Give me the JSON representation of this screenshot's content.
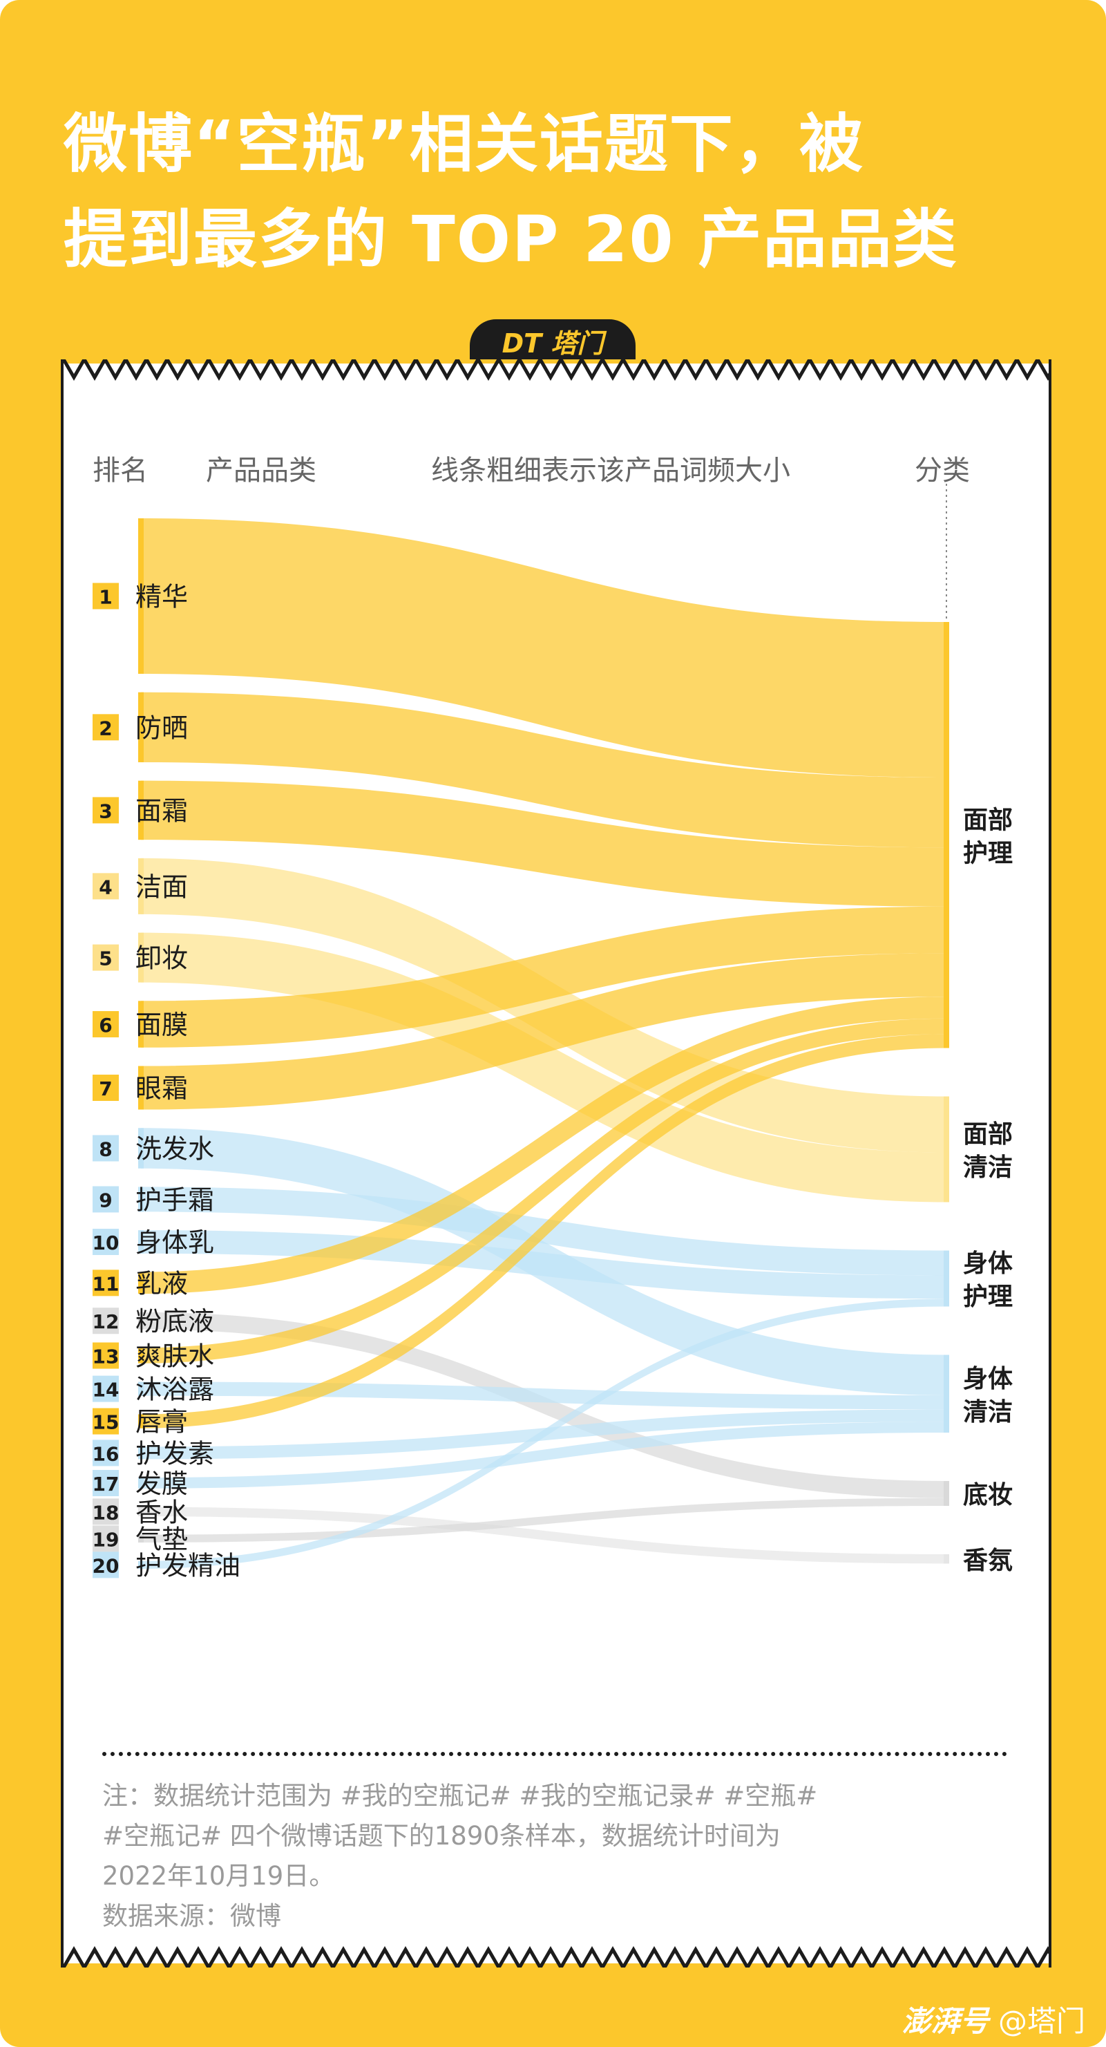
{
  "title": {
    "line1": "微博“空瓶”相关话题下，被",
    "line2": "提到最多的 TOP 20 产品品类"
  },
  "logo": "DT 塔门",
  "headers": {
    "rank": "排名",
    "product": "产品品类",
    "width_note": "线条粗细表示该产品词频大小",
    "category": "分类"
  },
  "colors": {
    "background": "#fcc72c",
    "face_care": "#fcc72c",
    "face_clean": "#fde38e",
    "body": "#bfe3f6",
    "base_makeup": "#d9d9d9",
    "fragrance": "#e6e6e6"
  },
  "chart_data": {
    "type": "sankey",
    "title": "微博“空瓶”相关话题下，被提到最多的 TOP 20 产品品类",
    "note": "线条粗细表示该产品词频大小",
    "categories": [
      {
        "id": "face_care",
        "label1": "面部",
        "label2": "护理"
      },
      {
        "id": "face_clean",
        "label1": "面部",
        "label2": "清洁"
      },
      {
        "id": "body_care",
        "label1": "身体",
        "label2": "护理"
      },
      {
        "id": "body_clean",
        "label1": "身体",
        "label2": "清洁"
      },
      {
        "id": "base_makeup",
        "label1": "底妆",
        "label2": ""
      },
      {
        "id": "fragrance",
        "label1": "香氛",
        "label2": ""
      }
    ],
    "products": [
      {
        "rank": "1",
        "name": "精华",
        "category": "face_care",
        "weight": 10
      },
      {
        "rank": "2",
        "name": "防晒",
        "category": "face_care",
        "weight": 4.5
      },
      {
        "rank": "3",
        "name": "面霜",
        "category": "face_care",
        "weight": 3.8
      },
      {
        "rank": "4",
        "name": "洁面",
        "category": "face_clean",
        "weight": 3.6
      },
      {
        "rank": "5",
        "name": "卸妆",
        "category": "face_clean",
        "weight": 3.2
      },
      {
        "rank": "6",
        "name": "面膜",
        "category": "face_care",
        "weight": 3.0
      },
      {
        "rank": "7",
        "name": "眼霜",
        "category": "face_care",
        "weight": 2.8
      },
      {
        "rank": "8",
        "name": "洗发水",
        "category": "body_clean",
        "weight": 2.6
      },
      {
        "rank": "9",
        "name": "护手霜",
        "category": "body_care",
        "weight": 1.6
      },
      {
        "rank": "10",
        "name": "身体乳",
        "category": "body_care",
        "weight": 1.5
      },
      {
        "rank": "11",
        "name": "乳液",
        "category": "face_care",
        "weight": 1.4
      },
      {
        "rank": "12",
        "name": "粉底液",
        "category": "base_makeup",
        "weight": 1.1
      },
      {
        "rank": "13",
        "name": "爽肤水",
        "category": "face_care",
        "weight": 1.0
      },
      {
        "rank": "14",
        "name": "沐浴露",
        "category": "body_clean",
        "weight": 0.9
      },
      {
        "rank": "15",
        "name": "唇膏",
        "category": "face_care",
        "weight": 0.9
      },
      {
        "rank": "16",
        "name": "护发素",
        "category": "body_clean",
        "weight": 0.8
      },
      {
        "rank": "17",
        "name": "发膜",
        "category": "body_clean",
        "weight": 0.7
      },
      {
        "rank": "18",
        "name": "香水",
        "category": "fragrance",
        "weight": 0.6
      },
      {
        "rank": "19",
        "name": "气垫",
        "category": "base_makeup",
        "weight": 0.5
      },
      {
        "rank": "20",
        "name": "护发精油",
        "category": "body_care",
        "weight": 0.5
      }
    ]
  },
  "footnote": {
    "line1": "注：数据统计范围为 #我的空瓶记# #我的空瓶记录# #空瓶#",
    "line2": "#空瓶记# 四个微博话题下的1890条样本，数据统计时间为",
    "line3": "2022年10月19日。",
    "source": "数据来源：微博"
  },
  "brand": {
    "platform": "澎湃号",
    "account": "@塔门"
  }
}
